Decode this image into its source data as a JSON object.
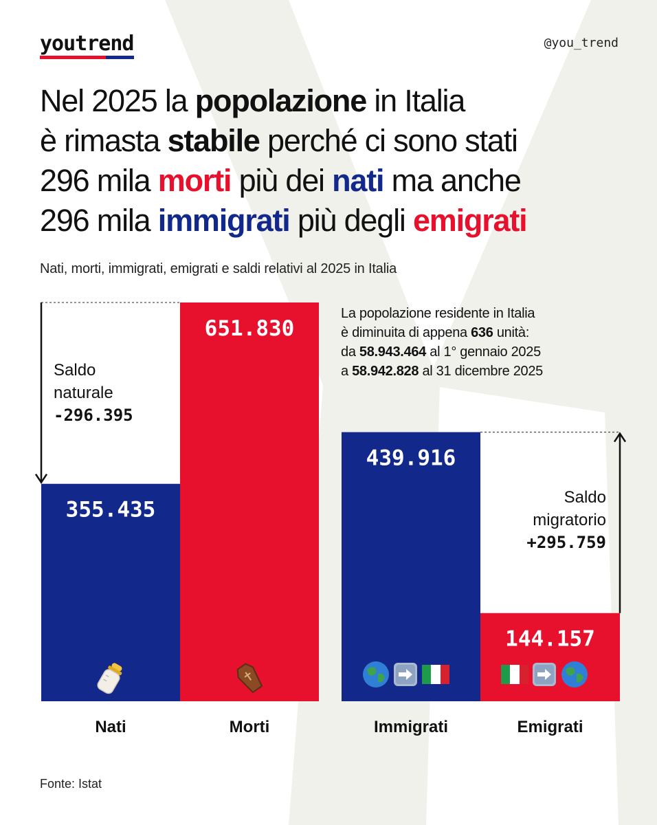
{
  "brand": {
    "logo": "youtrend",
    "handle": "@you_trend"
  },
  "headline": {
    "line1": {
      "a": "Nel 2025 la ",
      "b": "popolazione",
      "c": " in Italia"
    },
    "line2": {
      "a": "è rimasta ",
      "b": "stabile",
      "c": " perché ci sono stati"
    },
    "line3": {
      "a": "296 mila ",
      "b": "morti",
      "c": " più dei ",
      "d": "nati",
      "e": " ma anche"
    },
    "line4": {
      "a": "296 mila ",
      "b": "immigrati",
      "c": " più degli ",
      "d": "emigrati"
    }
  },
  "subtitle": "Nati, morti, immigrati, emigrati e saldi relativi al 2025 in Italia",
  "annotation": {
    "l1": "La popolazione residente in Italia",
    "l2a": "è diminuita di appena ",
    "l2b": "636",
    "l2c": " unità:",
    "l3a": "da ",
    "l3b": "58.943.464",
    "l3c": " al 1° gennaio 2025",
    "l4a": "a ",
    "l4b": "58.942.828",
    "l4c": " al 31 dicembre 2025"
  },
  "saldo_naturale": {
    "l1": "Saldo",
    "l2": "naturale",
    "value": "-296.395"
  },
  "saldo_migratorio": {
    "l1": "Saldo",
    "l2": "migratorio",
    "value": "+295.759"
  },
  "source": "Fonte: Istat",
  "colors": {
    "blue": "#12288a",
    "red": "#e8112d",
    "bg_shape": "#f1f1ec"
  },
  "icons": {
    "nati": "baby-bottle-icon",
    "morti": "coffin-icon",
    "immigrati": [
      "globe-icon",
      "right-arrow-icon",
      "italy-flag-icon"
    ],
    "emigrati": [
      "italy-flag-icon",
      "right-arrow-icon",
      "globe-icon"
    ]
  },
  "chart_data": {
    "type": "bar",
    "categories": [
      "Nati",
      "Morti",
      "Immigrati",
      "Emigrati"
    ],
    "values": [
      355435,
      651830,
      439916,
      144157
    ],
    "value_labels": [
      "355.435",
      "651.830",
      "439.916",
      "144.157"
    ],
    "bar_colors": [
      "#12288a",
      "#e8112d",
      "#12288a",
      "#e8112d"
    ],
    "title": "",
    "xlabel": "",
    "ylabel": "",
    "grid": false
  }
}
